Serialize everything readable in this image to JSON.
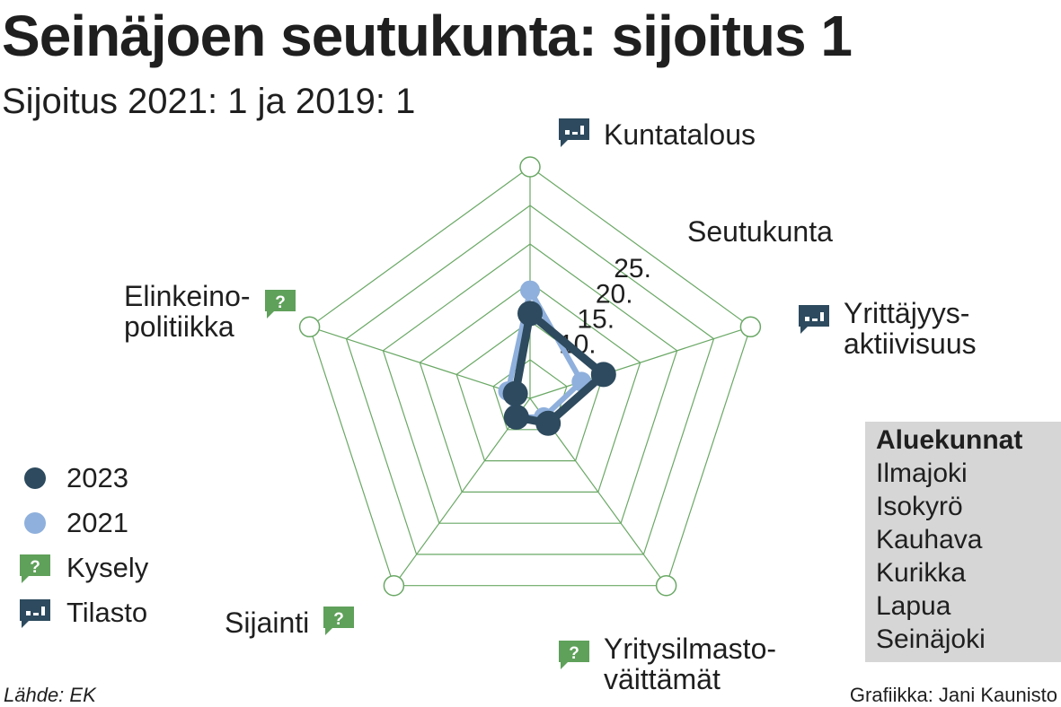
{
  "title": "Seinäjoen seutukunta: sijoitus 1",
  "subtitle": "Sijoitus 2021: 1  ja 2019: 1",
  "axes": [
    {
      "label_lines": [
        "Kuntatalous"
      ],
      "icon": "stat-icon"
    },
    {
      "label_lines": [
        "Yrittäjyys-",
        "aktiivisuus"
      ],
      "icon": "stat-icon"
    },
    {
      "label_lines": [
        "Yritysilmasto-",
        "väittämät"
      ],
      "icon": "survey-icon"
    },
    {
      "label_lines": [
        "Sijainti"
      ],
      "icon": "survey-icon"
    },
    {
      "label_lines": [
        "Elinkeino-",
        "politiikka"
      ],
      "icon": "survey-icon"
    }
  ],
  "ring_title": "Seutukunta",
  "legend": [
    {
      "label": "2023",
      "kind": "dot",
      "color": "#2d4a5e"
    },
    {
      "label": "2021",
      "kind": "dot",
      "color": "#8fb0dc"
    },
    {
      "label": "Kysely",
      "kind": "survey-icon",
      "color": "#5fa05a"
    },
    {
      "label": "Tilasto",
      "kind": "stat-icon",
      "color": "#2d4a5e"
    }
  ],
  "region_box": {
    "heading": "Aluekunnat",
    "items": [
      "Ilmajoki",
      "Isokyrö",
      "Kauhava",
      "Kurikka",
      "Lapua",
      "Seinäjoki"
    ]
  },
  "source": "Lähde: EK",
  "credit": "Grafiikka: Jani Kaunisto",
  "chart_data": {
    "type": "radar",
    "axes": [
      "Kuntatalous",
      "Yrittäjyysaktiivisuus",
      "Yritysilmastoväittämät",
      "Sijainti",
      "Elinkeinopolitiikka"
    ],
    "rings": [
      5,
      10,
      15,
      20,
      25,
      30
    ],
    "ring_labels": [
      "10.",
      "15.",
      "20.",
      "25."
    ],
    "rank_range": [
      1,
      30
    ],
    "series": [
      {
        "name": "2023",
        "color": "#2d4a5e",
        "values": [
          11,
          10,
          4,
          3,
          2
        ]
      },
      {
        "name": "2021",
        "color": "#8fb0dc",
        "values": [
          14,
          7,
          3,
          3,
          3
        ]
      }
    ],
    "colors": {
      "grid": "#6aa865",
      "survey": "#5fa05a",
      "stat": "#2d4a5e",
      "box": "#d6d6d6"
    }
  }
}
